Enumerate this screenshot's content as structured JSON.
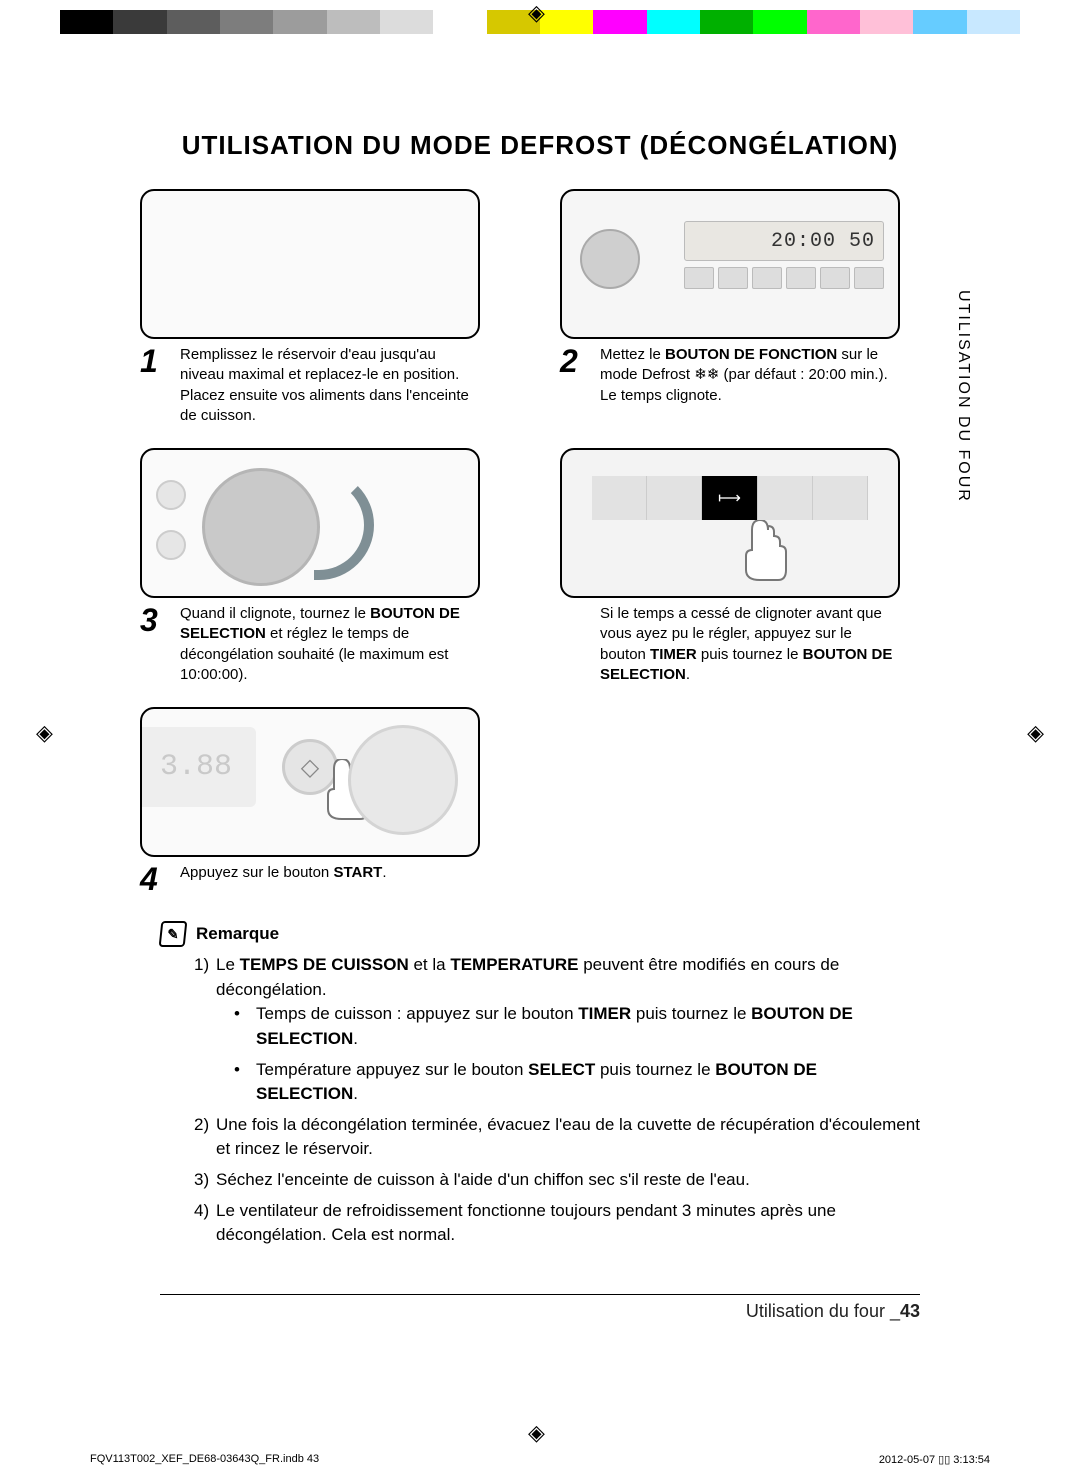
{
  "colorbar": [
    "#000000",
    "#3a3a3a",
    "#5d5d5d",
    "#7d7d7d",
    "#9c9c9c",
    "#bdbdbd",
    "#dcdcdc",
    "#ffffff",
    "#d6c800",
    "#ffff00",
    "#ff00ff",
    "#00ffff",
    "#00b000",
    "#00ff00",
    "#ff66cc",
    "#ffc0d8",
    "#66ccff",
    "#c8e8ff"
  ],
  "title": "UTILISATION DU MODE DEFROST (DÉCONGÉLATION)",
  "sidetab": "UTILISATION DU FOUR",
  "panel2_display": "20:00   50",
  "panelR2_selected_glyph": "⟼",
  "panel4_display": "3.88",
  "step1": {
    "num": "1",
    "text": "Remplissez le réservoir d'eau jusqu'au niveau maximal et replacez-le en position. Placez ensuite vos aliments dans l'enceinte de cuisson."
  },
  "step2": {
    "num": "2",
    "pre": "Mettez le ",
    "bold": "BOUTON DE FONCTION",
    "post": " sur le mode Defrost ❄❄ (par défaut : 20:00 min.). Le temps clignote."
  },
  "step3": {
    "num": "3",
    "pre": "Quand il clignote, tournez le ",
    "bold": "BOUTON DE SELECTION",
    "post": " et réglez le temps de décongélation souhaité (le maximum est 10:00:00)."
  },
  "stepR2": {
    "pre": "Si le temps a cessé de clignoter avant que vous ayez pu le régler, appuyez sur le bouton ",
    "bold1": "TIMER",
    "mid": " puis tournez le ",
    "bold2": "BOUTON DE SELECTION",
    "post": "."
  },
  "step4": {
    "num": "4",
    "pre": "Appuyez sur le bouton ",
    "bold": "START",
    "post": "."
  },
  "remark": {
    "label": "Remarque",
    "n1_pre": "Le ",
    "n1_b1": "TEMPS DE CUISSON",
    "n1_mid": " et la ",
    "n1_b2": "TEMPERATURE",
    "n1_post": " peuvent être modifiés en cours de décongélation.",
    "s1_pre": "Temps de cuisson : appuyez sur le bouton ",
    "s1_b1": "TIMER",
    "s1_mid": " puis tournez le ",
    "s1_b2": "BOUTON DE SELECTION",
    "s1_post": ".",
    "s2_pre": "Température appuyez sur le bouton ",
    "s2_b1": "SELECT",
    "s2_mid": " puis tournez le ",
    "s2_b2": "BOUTON DE SELECTION",
    "s2_post": ".",
    "n2": "Une fois la décongélation terminée, évacuez l'eau de la cuvette de récupération d'écoulement et rincez le réservoir.",
    "n3": "Séchez l'enceinte de cuisson à l'aide d'un chiffon sec s'il reste de l'eau.",
    "n4": "Le ventilateur de refroidissement fonctionne toujours pendant 3 minutes après une décongélation. Cela est normal."
  },
  "footer": {
    "section_pre": "Utilisation du four _",
    "page": "43",
    "file": "FQV113T002_XEF_DE68-03643Q_FR.indb   43",
    "date": "2012-05-07   ▯▯ 3:13:54"
  }
}
